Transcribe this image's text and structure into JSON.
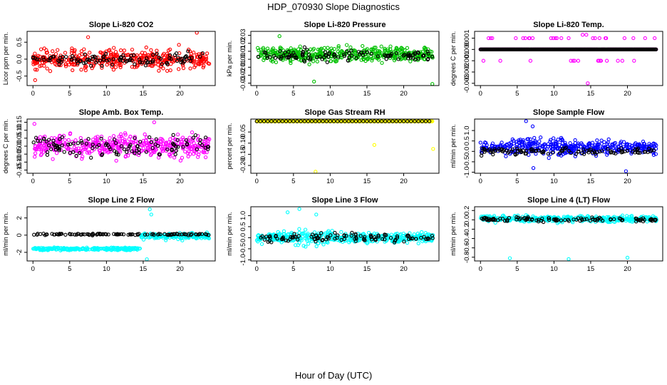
{
  "figure": {
    "title": "HDP_070930  Slope Diagnostics",
    "xlabel": "Hour of Day (UTC)"
  },
  "chart_data": [
    {
      "type": "scatter",
      "title": "Slope Li-820 CO2",
      "ylabel": "Licor ppm per min.",
      "color": "#ff0000",
      "xlim": [
        -0.8,
        24.8
      ],
      "ylim": [
        -0.78,
        0.82
      ],
      "xticks": [
        0,
        5,
        10,
        15,
        20
      ],
      "yticks": [
        -0.5,
        0.0,
        0.5
      ],
      "ytick_labels": [
        "-0.5",
        "0.0",
        "0.5"
      ],
      "series": [
        {
          "color": "#ff0000",
          "center": 0.0,
          "spread": 0.28,
          "outliers": [
            [
              22.3,
              0.78
            ],
            [
              7.5,
              0.65
            ],
            [
              0.3,
              -0.62
            ]
          ]
        },
        {
          "color": "#000000",
          "center": 0.0,
          "spread": 0.18,
          "outliers": []
        }
      ]
    },
    {
      "type": "scatter",
      "title": "Slope Li-820 Pressure",
      "ylabel": "kPa per min.",
      "color": "#00c000",
      "xlim": [
        -0.8,
        24.8
      ],
      "ylim": [
        -0.033,
        0.035
      ],
      "xticks": [
        0,
        5,
        10,
        15,
        20
      ],
      "yticks": [
        -0.03,
        -0.02,
        -0.01,
        0.0,
        0.01,
        0.02,
        0.03
      ],
      "ytick_labels": [
        "-0.03",
        "-0.02",
        "-0.01",
        "0.00",
        "0.01",
        "0.02",
        "0.03"
      ],
      "series": [
        {
          "color": "#00c000",
          "center": 0.006,
          "spread": 0.009,
          "outliers": [
            [
              3.1,
              0.029
            ],
            [
              7.8,
              -0.028
            ],
            [
              23.9,
              -0.031
            ]
          ]
        },
        {
          "color": "#000000",
          "center": 0.005,
          "spread": 0.007,
          "outliers": []
        }
      ]
    },
    {
      "type": "scatter",
      "title": "Slope Li-820 Temp.",
      "ylabel": "degrees C per min.",
      "color": "#ff00ff",
      "xlim": [
        -0.8,
        24.8
      ],
      "ylim": [
        -0.0032,
        0.0016
      ],
      "xticks": [
        0,
        5,
        10,
        15,
        20
      ],
      "yticks": [
        -0.003,
        -0.002,
        -0.001,
        0.0,
        0.001
      ],
      "ytick_labels": [
        "-0.003",
        "-0.002",
        "-0.001",
        "0.000",
        "0.001"
      ],
      "levels": [
        0.001,
        0.0,
        -0.001,
        -0.002,
        -0.003
      ],
      "series": [
        {
          "color": "#ff00ff",
          "center": 0.0,
          "spread": 0.0,
          "outliers": []
        },
        {
          "color": "#000000",
          "center": 0.0,
          "spread": 0.0,
          "outliers": []
        }
      ]
    },
    {
      "type": "scatter",
      "title": "Slope Amb. Box Temp.",
      "ylabel": "degrees C per min.",
      "color": "#ff00ff",
      "xlim": [
        -0.8,
        24.8
      ],
      "ylim": [
        -0.17,
        0.17
      ],
      "xticks": [
        0,
        5,
        10,
        15,
        20
      ],
      "yticks": [
        -0.15,
        -0.1,
        -0.05,
        0.0,
        0.05,
        0.1,
        0.15
      ],
      "ytick_labels": [
        "-0.15",
        "-0.10",
        "-0.05",
        "0.00",
        "0.05",
        "0.10",
        "0.15"
      ],
      "series": [
        {
          "color": "#ff00ff",
          "center": 0.0,
          "spread": 0.065,
          "outliers": [
            [
              0.2,
              0.14
            ],
            [
              16.5,
              0.15
            ]
          ]
        },
        {
          "color": "#000000",
          "center": 0.0,
          "spread": 0.06,
          "outliers": []
        }
      ]
    },
    {
      "type": "scatter",
      "title": "Slope Gas Stream RH",
      "ylabel": "percent per min.",
      "color": "#ffff00",
      "xlim": [
        -0.8,
        24.8
      ],
      "ylim": [
        -0.235,
        0.008
      ],
      "xticks": [
        0,
        5,
        10,
        15,
        20
      ],
      "yticks": [
        -0.2,
        -0.15,
        -0.1,
        -0.05
      ],
      "ytick_labels": [
        "-0.20",
        "-0.15",
        "-0.10",
        "-0.05"
      ],
      "series": [
        {
          "color": "#ffff00",
          "center": 0.0,
          "spread": 0.0,
          "outliers": [
            [
              8.0,
              -0.228
            ],
            [
              16.0,
              -0.108
            ],
            [
              24.0,
              -0.126
            ]
          ]
        },
        {
          "color": "#000000",
          "center": 0.0,
          "spread": 0.0,
          "outliers": []
        }
      ]
    },
    {
      "type": "scatter",
      "title": "Slope Sample Flow",
      "ylabel": "ml/min per min.",
      "color": "#0000ff",
      "xlim": [
        -0.8,
        24.8
      ],
      "ylim": [
        -1.05,
        1.55
      ],
      "xticks": [
        0,
        5,
        10,
        15,
        20
      ],
      "yticks": [
        -1.0,
        -0.5,
        0.0,
        0.5,
        1.0
      ],
      "ytick_labels": [
        "-1.0",
        "-0.5",
        "0.0",
        "0.5",
        "1.0"
      ],
      "series": [
        {
          "color": "#0000ff",
          "center": 0.2,
          "spread": 0.3,
          "outliers": [
            [
              6.2,
              1.45
            ],
            [
              7.1,
              1.2
            ],
            [
              19.8,
              -0.95
            ],
            [
              7.2,
              -0.8
            ]
          ]
        },
        {
          "color": "#000000",
          "center": 0.0,
          "spread": 0.15,
          "outliers": []
        }
      ]
    },
    {
      "type": "scatter",
      "title": "Slope Line 2 Flow",
      "ylabel": "ml/min per min.",
      "color": "#00ffff",
      "xlim": [
        -0.8,
        24.8
      ],
      "ylim": [
        -3.0,
        3.3
      ],
      "xticks": [
        0,
        5,
        10,
        15,
        20
      ],
      "yticks": [
        -2,
        0,
        2
      ],
      "ytick_labels": [
        "-2",
        "0",
        "2"
      ],
      "series": [
        {
          "color": "#00ffff",
          "center": -1.6,
          "spread": 0.15,
          "outliers": [
            [
              15.9,
              3.0
            ],
            [
              16.1,
              2.4
            ],
            [
              15.5,
              -2.8
            ]
          ]
        },
        {
          "color": "#000000",
          "center": 0.1,
          "spread": 0.08,
          "outliers": []
        }
      ]
    },
    {
      "type": "scatter",
      "title": "Slope Line 3 Flow",
      "ylabel": "ml/min per min.",
      "color": "#00ffff",
      "xlim": [
        -0.8,
        24.8
      ],
      "ylim": [
        -1.05,
        1.4
      ],
      "xticks": [
        0,
        5,
        10,
        15,
        20
      ],
      "yticks": [
        -1.0,
        -0.5,
        0.0,
        0.5,
        1.0
      ],
      "ytick_labels": [
        "-1.0",
        "-0.5",
        "0.0",
        "0.5",
        "1.0"
      ],
      "series": [
        {
          "color": "#00ffff",
          "center": 0.0,
          "spread": 0.22,
          "outliers": [
            [
              5.8,
              1.3
            ],
            [
              4.2,
              1.15
            ],
            [
              8.1,
              1.05
            ]
          ]
        },
        {
          "color": "#000000",
          "center": 0.0,
          "spread": 0.18,
          "outliers": []
        }
      ]
    },
    {
      "type": "scatter",
      "title": "Slope Line 4 (LT) Flow",
      "ylabel": "ml/min per min.",
      "color": "#00ffff",
      "xlim": [
        -0.8,
        24.8
      ],
      "ylim": [
        -0.88,
        0.28
      ],
      "xticks": [
        0,
        5,
        10,
        15,
        20
      ],
      "yticks": [
        -0.8,
        -0.6,
        -0.4,
        -0.2,
        0.0,
        0.2
      ],
      "ytick_labels": [
        "-0.8",
        "-0.6",
        "-0.4",
        "-0.2",
        "0.0",
        "0.2"
      ],
      "series": [
        {
          "color": "#00ffff",
          "center": 0.02,
          "spread": 0.06,
          "outliers": [
            [
              4.0,
              -0.82
            ],
            [
              12.0,
              -0.84
            ],
            [
              20.0,
              -0.81
            ]
          ]
        },
        {
          "color": "#000000",
          "center": 0.0,
          "spread": 0.05,
          "outliers": []
        }
      ]
    }
  ]
}
